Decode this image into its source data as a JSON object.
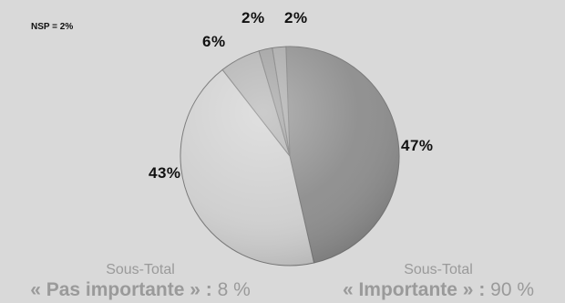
{
  "chart_data": {
    "type": "pie",
    "note": "NSP = 2%",
    "slices": [
      {
        "label": "47%",
        "value": 47,
        "color": "#8c8c8c"
      },
      {
        "label": "43%",
        "value": 43,
        "color": "#cfcfcf"
      },
      {
        "label": "6%",
        "value": 6,
        "color": "#b0b0b0"
      },
      {
        "label": "2%",
        "value": 2,
        "color": "#9c9c9c"
      },
      {
        "label": "2%",
        "value": 2,
        "color": "#a6a6a6"
      }
    ],
    "subtotals": [
      {
        "title": "Sous-Total",
        "label": "« Pas importante » :",
        "value": "8 %"
      },
      {
        "title": "Sous-Total",
        "label": "« Importante » :",
        "value": "90 %"
      }
    ]
  }
}
